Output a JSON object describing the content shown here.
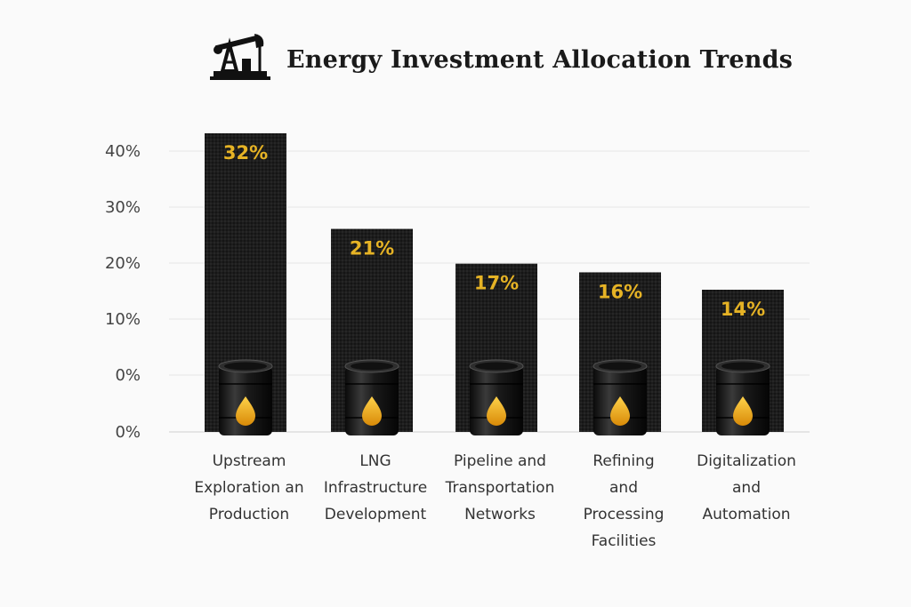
{
  "chart_data": {
    "type": "bar",
    "title": "Energy Investment Allocation Trends",
    "title_icon": "oil-pump-jack-icon",
    "y_tick_labels": [
      "0%",
      "0%",
      "10%",
      "20%",
      "30%",
      "40%"
    ],
    "categories": [
      [
        "Upstream",
        "Exploration an",
        "Production"
      ],
      [
        "LNG",
        "Infrastructure",
        "Development"
      ],
      [
        "Pipeline and",
        "Transportation",
        "Networks"
      ],
      [
        "Refining",
        "and",
        "Processing",
        "Facilities"
      ],
      [
        "Digitalization",
        "and",
        "Automation"
      ]
    ],
    "values": [
      32,
      21,
      17,
      16,
      14
    ],
    "value_labels": [
      "32%",
      "21%",
      "17%",
      "16%",
      "14%"
    ],
    "bar_icon": "oil-barrel-icon",
    "colors": {
      "bar": "#1c1c1c",
      "value_text": "#e6b325",
      "drop": "#f0a818",
      "grid": "#e6e6e6"
    }
  }
}
